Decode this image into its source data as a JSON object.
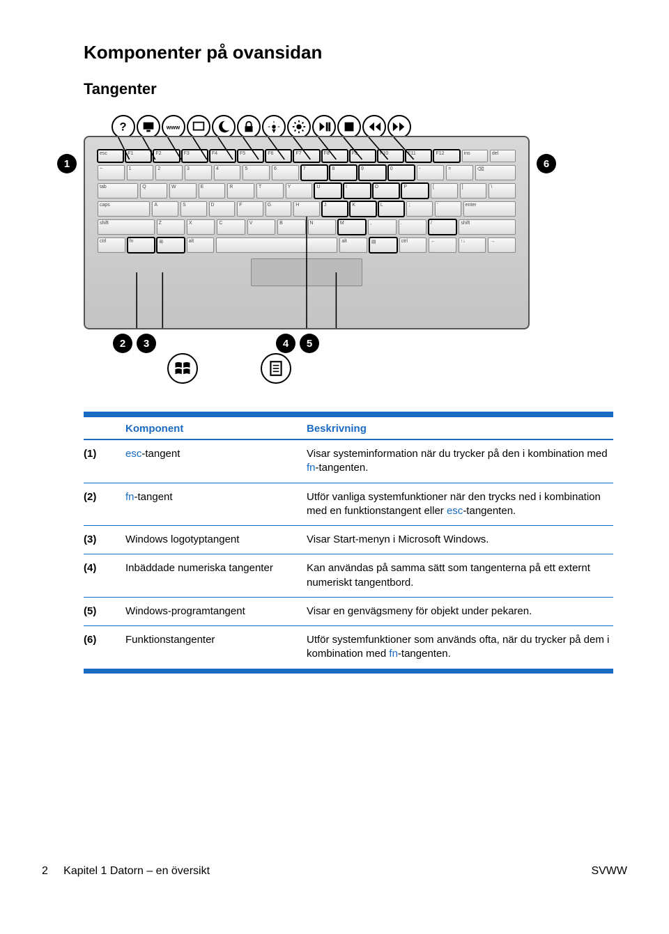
{
  "heading": "Komponenter på ovansidan",
  "subheading": "Tangenter",
  "table": {
    "headers": {
      "col1": "Komponent",
      "col2": "Beskrivning"
    },
    "rows": [
      {
        "num": "(1)",
        "name_pre": "",
        "name_link": "esc",
        "name_post": "-tangent",
        "desc_pre": "Visar systeminformation när du trycker på den i kombination med ",
        "desc_link": "fn",
        "desc_post": "-tangenten."
      },
      {
        "num": "(2)",
        "name_pre": "",
        "name_link": "fn",
        "name_post": "-tangent",
        "desc_pre": "Utför vanliga systemfunktioner när den trycks ned i kombination med en funktionstangent eller ",
        "desc_link": "esc",
        "desc_post": "-tangenten."
      },
      {
        "num": "(3)",
        "name_pre": "Windows logotyptangent",
        "name_link": "",
        "name_post": "",
        "desc_pre": "Visar Start-menyn i Microsoft Windows.",
        "desc_link": "",
        "desc_post": ""
      },
      {
        "num": "(4)",
        "name_pre": "Inbäddade numeriska tangenter",
        "name_link": "",
        "name_post": "",
        "desc_pre": "Kan användas på samma sätt som tangenterna på ett externt numeriskt tangentbord.",
        "desc_link": "",
        "desc_post": ""
      },
      {
        "num": "(5)",
        "name_pre": "Windows-programtangent",
        "name_link": "",
        "name_post": "",
        "desc_pre": "Visar en genvägsmeny för objekt under pekaren.",
        "desc_link": "",
        "desc_post": ""
      },
      {
        "num": "(6)",
        "name_pre": "Funktionstangenter",
        "name_link": "",
        "name_post": "",
        "desc_pre": "Utför systemfunktioner som används ofta, när du trycker på dem i kombination med ",
        "desc_link": "fn",
        "desc_post": "-tangenten."
      }
    ]
  },
  "footer": {
    "page": "2",
    "chapter": "Kapitel 1   Datorn – en översikt",
    "right": "SVWW"
  },
  "colors": {
    "accent": "#1a6bc4",
    "bg": "#ffffff",
    "text": "#000000"
  },
  "diagram": {
    "badges": [
      "1",
      "2",
      "3",
      "4",
      "5",
      "6"
    ],
    "top_icons": [
      "help",
      "display",
      "www",
      "screen",
      "moon",
      "lock",
      "bright-down",
      "bright-up",
      "play",
      "stop",
      "prev",
      "next"
    ]
  }
}
